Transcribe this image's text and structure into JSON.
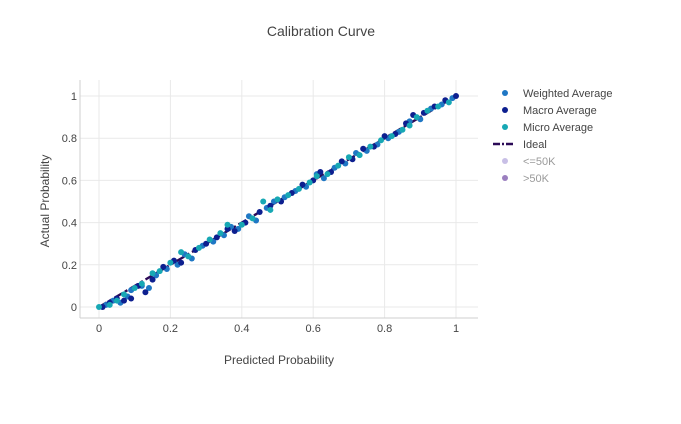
{
  "chart_data": {
    "type": "scatter",
    "title": "Calibration Curve",
    "xlabel": "Predicted Probability",
    "ylabel": "Actual Probability",
    "xlim": [
      0,
      1
    ],
    "ylim": [
      0,
      1
    ],
    "x_ticks": [
      "0",
      "0.2",
      "0.4",
      "0.6",
      "0.8",
      "1"
    ],
    "y_ticks": [
      "0",
      "0.2",
      "0.4",
      "0.6",
      "0.8",
      "1"
    ],
    "grid": true,
    "legend_position": "top-right",
    "series": [
      {
        "name": "Weighted Average",
        "color": "#1f77c4",
        "marker": "circle",
        "points": [
          [
            0.02,
            0.01
          ],
          [
            0.04,
            0.03
          ],
          [
            0.06,
            0.02
          ],
          [
            0.08,
            0.05
          ],
          [
            0.09,
            0.08
          ],
          [
            0.12,
            0.1
          ],
          [
            0.14,
            0.09
          ],
          [
            0.16,
            0.15
          ],
          [
            0.19,
            0.18
          ],
          [
            0.22,
            0.2
          ],
          [
            0.24,
            0.25
          ],
          [
            0.26,
            0.23
          ],
          [
            0.29,
            0.29
          ],
          [
            0.32,
            0.31
          ],
          [
            0.35,
            0.34
          ],
          [
            0.37,
            0.38
          ],
          [
            0.39,
            0.37
          ],
          [
            0.42,
            0.43
          ],
          [
            0.44,
            0.41
          ],
          [
            0.47,
            0.47
          ],
          [
            0.49,
            0.5
          ],
          [
            0.52,
            0.52
          ],
          [
            0.55,
            0.55
          ],
          [
            0.58,
            0.57
          ],
          [
            0.61,
            0.63
          ],
          [
            0.63,
            0.61
          ],
          [
            0.66,
            0.66
          ],
          [
            0.69,
            0.68
          ],
          [
            0.72,
            0.73
          ],
          [
            0.75,
            0.74
          ],
          [
            0.78,
            0.77
          ],
          [
            0.81,
            0.8
          ],
          [
            0.84,
            0.83
          ],
          [
            0.87,
            0.88
          ],
          [
            0.9,
            0.89
          ],
          [
            0.93,
            0.94
          ],
          [
            0.96,
            0.96
          ],
          [
            0.99,
            0.99
          ]
        ]
      },
      {
        "name": "Macro Average",
        "color": "#0d1f8f",
        "marker": "circle",
        "points": [
          [
            0.01,
            0.0
          ],
          [
            0.03,
            0.02
          ],
          [
            0.05,
            0.04
          ],
          [
            0.07,
            0.03
          ],
          [
            0.09,
            0.04
          ],
          [
            0.11,
            0.1
          ],
          [
            0.13,
            0.07
          ],
          [
            0.15,
            0.13
          ],
          [
            0.18,
            0.19
          ],
          [
            0.21,
            0.22
          ],
          [
            0.23,
            0.21
          ],
          [
            0.27,
            0.27
          ],
          [
            0.3,
            0.3
          ],
          [
            0.33,
            0.33
          ],
          [
            0.36,
            0.37
          ],
          [
            0.38,
            0.36
          ],
          [
            0.41,
            0.4
          ],
          [
            0.45,
            0.45
          ],
          [
            0.48,
            0.48
          ],
          [
            0.51,
            0.5
          ],
          [
            0.54,
            0.54
          ],
          [
            0.57,
            0.58
          ],
          [
            0.6,
            0.6
          ],
          [
            0.62,
            0.64
          ],
          [
            0.65,
            0.64
          ],
          [
            0.68,
            0.69
          ],
          [
            0.71,
            0.7
          ],
          [
            0.74,
            0.75
          ],
          [
            0.77,
            0.76
          ],
          [
            0.8,
            0.81
          ],
          [
            0.83,
            0.82
          ],
          [
            0.86,
            0.87
          ],
          [
            0.88,
            0.91
          ],
          [
            0.91,
            0.92
          ],
          [
            0.94,
            0.95
          ],
          [
            0.97,
            0.98
          ],
          [
            1.0,
            1.0
          ]
        ]
      },
      {
        "name": "Micro Average",
        "color": "#17a8b4",
        "marker": "circle",
        "points": [
          [
            0.0,
            0.0
          ],
          [
            0.03,
            0.01
          ],
          [
            0.05,
            0.03
          ],
          [
            0.07,
            0.06
          ],
          [
            0.1,
            0.09
          ],
          [
            0.12,
            0.11
          ],
          [
            0.15,
            0.16
          ],
          [
            0.17,
            0.17
          ],
          [
            0.2,
            0.21
          ],
          [
            0.23,
            0.26
          ],
          [
            0.25,
            0.24
          ],
          [
            0.28,
            0.28
          ],
          [
            0.31,
            0.32
          ],
          [
            0.34,
            0.35
          ],
          [
            0.36,
            0.39
          ],
          [
            0.4,
            0.39
          ],
          [
            0.43,
            0.42
          ],
          [
            0.46,
            0.5
          ],
          [
            0.48,
            0.46
          ],
          [
            0.5,
            0.51
          ],
          [
            0.53,
            0.53
          ],
          [
            0.56,
            0.56
          ],
          [
            0.59,
            0.59
          ],
          [
            0.61,
            0.62
          ],
          [
            0.64,
            0.63
          ],
          [
            0.67,
            0.67
          ],
          [
            0.7,
            0.71
          ],
          [
            0.73,
            0.72
          ],
          [
            0.76,
            0.76
          ],
          [
            0.79,
            0.79
          ],
          [
            0.82,
            0.81
          ],
          [
            0.85,
            0.84
          ],
          [
            0.87,
            0.86
          ],
          [
            0.89,
            0.9
          ],
          [
            0.92,
            0.93
          ],
          [
            0.95,
            0.95
          ],
          [
            0.98,
            0.97
          ]
        ]
      }
    ],
    "ideal": {
      "name": "Ideal",
      "color": "#2b0a57",
      "style": "dashdot",
      "points": [
        [
          0,
          0
        ],
        [
          1,
          1
        ]
      ]
    },
    "extra_legend": [
      {
        "name": "<=50K",
        "color": "#c8bfe6",
        "muted": true
      },
      {
        "name": ">50K",
        "color": "#9b7fbf",
        "muted": true
      }
    ]
  }
}
